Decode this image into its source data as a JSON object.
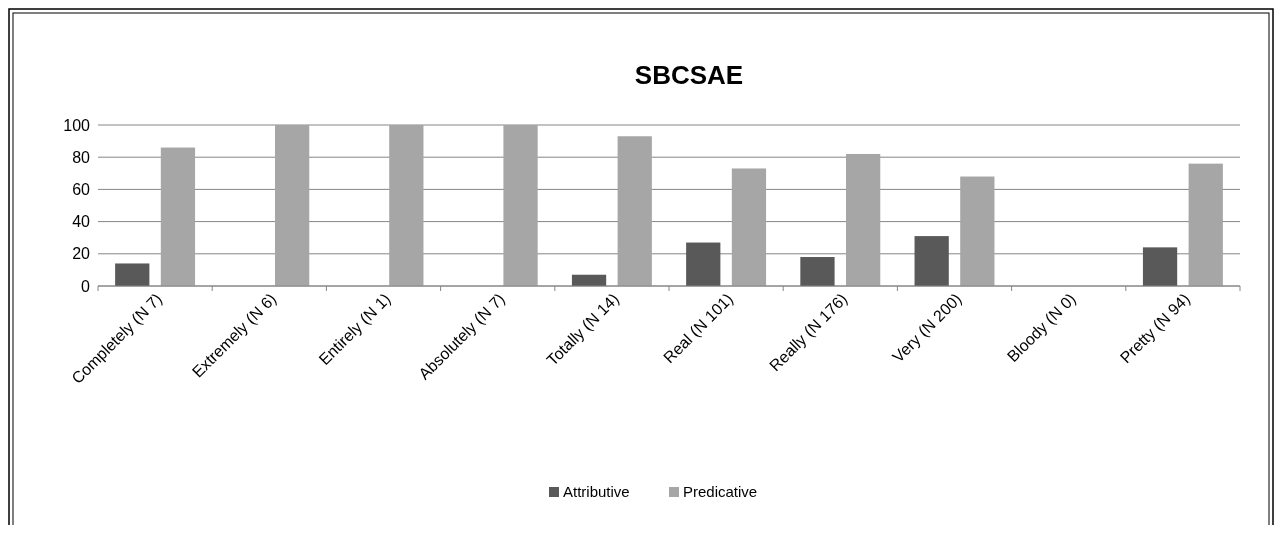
{
  "chart_data": {
    "type": "bar",
    "title": "SBCSAE",
    "categories": [
      "Completely (N 7)",
      "Extremely (N 6)",
      "Entirely (N 1)",
      "Absolutely (N 7)",
      "Totally (N 14)",
      "Real (N 101)",
      "Really (N 176)",
      "Very (N 200)",
      "Bloody (N 0)",
      "Pretty (N 94)"
    ],
    "series": [
      {
        "name": "Attributive",
        "color": "#595959",
        "values": [
          14,
          0,
          0,
          0,
          7,
          27,
          18,
          31,
          0,
          24
        ]
      },
      {
        "name": "Predicative",
        "color": "#a6a6a6",
        "values": [
          86,
          100,
          100,
          100,
          93,
          73,
          82,
          68,
          0,
          76
        ]
      }
    ],
    "ylim": [
      0,
      100
    ],
    "yticks": [
      0,
      20,
      40,
      60,
      80,
      100
    ],
    "grid": "y",
    "legend": "bottom"
  }
}
